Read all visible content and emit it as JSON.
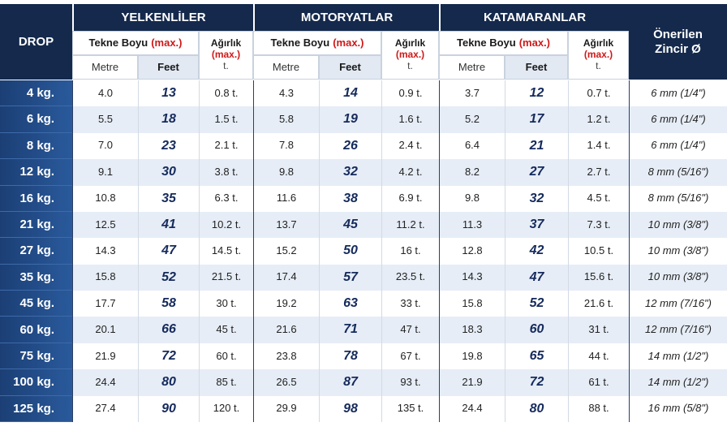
{
  "header": {
    "drop": "DROP",
    "groups": [
      "YELKENLİLER",
      "MOTORYATLAR",
      "KATAMARANLAR"
    ],
    "length": "Tekne Boyu",
    "max": "(max.)",
    "weight": "Ağırlık",
    "weight_unit": "t.",
    "metre": "Metre",
    "feet": "Feet",
    "chain": "Önerilen Zincir Ø"
  },
  "table": {
    "rows": [
      [
        "4 kg.",
        "4.0",
        "13",
        "0.8 t.",
        "4.3",
        "14",
        "0.9 t.",
        "3.7",
        "12",
        "0.7 t.",
        "6 mm (1/4\")"
      ],
      [
        "6 kg.",
        "5.5",
        "18",
        "1.5 t.",
        "5.8",
        "19",
        "1.6 t.",
        "5.2",
        "17",
        "1.2 t.",
        "6 mm (1/4\")"
      ],
      [
        "8 kg.",
        "7.0",
        "23",
        "2.1 t.",
        "7.8",
        "26",
        "2.4 t.",
        "6.4",
        "21",
        "1.4 t.",
        "6 mm (1/4\")"
      ],
      [
        "12 kg.",
        "9.1",
        "30",
        "3.8 t.",
        "9.8",
        "32",
        "4.2 t.",
        "8.2",
        "27",
        "2.7 t.",
        "8 mm (5/16\")"
      ],
      [
        "16 kg.",
        "10.8",
        "35",
        "6.3 t.",
        "11.6",
        "38",
        "6.9 t.",
        "9.8",
        "32",
        "4.5 t.",
        "8 mm (5/16\")"
      ],
      [
        "21 kg.",
        "12.5",
        "41",
        "10.2 t.",
        "13.7",
        "45",
        "11.2 t.",
        "11.3",
        "37",
        "7.3 t.",
        "10 mm (3/8\")"
      ],
      [
        "27 kg.",
        "14.3",
        "47",
        "14.5 t.",
        "15.2",
        "50",
        "16 t.",
        "12.8",
        "42",
        "10.5 t.",
        "10 mm (3/8\")"
      ],
      [
        "35 kg.",
        "15.8",
        "52",
        "21.5 t.",
        "17.4",
        "57",
        "23.5 t.",
        "14.3",
        "47",
        "15.6 t.",
        "10 mm (3/8\")"
      ],
      [
        "45 kg.",
        "17.7",
        "58",
        "30 t.",
        "19.2",
        "63",
        "33 t.",
        "15.8",
        "52",
        "21.6 t.",
        "12 mm (7/16\")"
      ],
      [
        "60 kg.",
        "20.1",
        "66",
        "45 t.",
        "21.6",
        "71",
        "47 t.",
        "18.3",
        "60",
        "31 t.",
        "12 mm (7/16\")"
      ],
      [
        "75 kg.",
        "21.9",
        "72",
        "60 t.",
        "23.8",
        "78",
        "67 t.",
        "19.8",
        "65",
        "44 t.",
        "14 mm (1/2\")"
      ],
      [
        "100 kg.",
        "24.4",
        "80",
        "85 t.",
        "26.5",
        "87",
        "93 t.",
        "21.9",
        "72",
        "61 t.",
        "14 mm (1/2\")"
      ],
      [
        "125 kg.",
        "27.4",
        "90",
        "120 t.",
        "29.9",
        "98",
        "135 t.",
        "24.4",
        "80",
        "88 t.",
        "16 mm (5/8\")"
      ]
    ]
  }
}
